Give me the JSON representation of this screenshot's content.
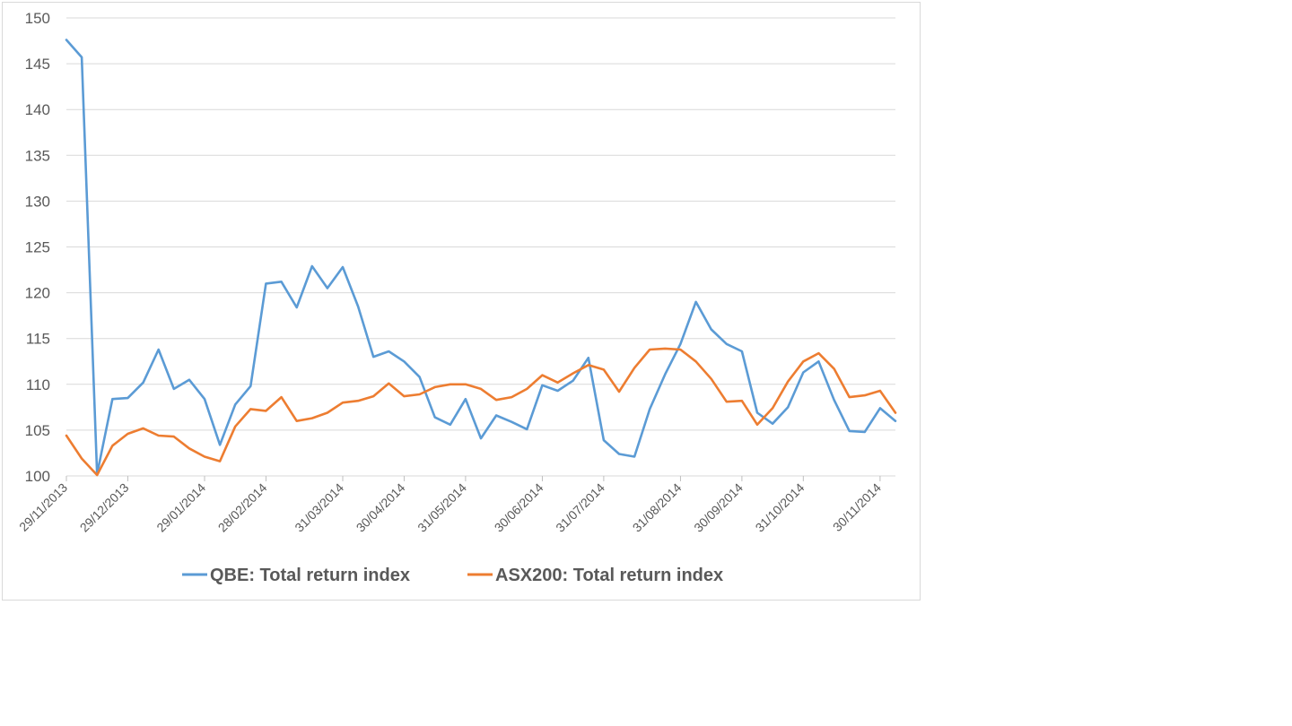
{
  "chart_data": {
    "type": "line",
    "title": "",
    "xlabel": "",
    "ylabel": "",
    "ylim": [
      100,
      150
    ],
    "y_ticks": [
      "100",
      "105",
      "110",
      "115",
      "120",
      "125",
      "130",
      "135",
      "140",
      "145",
      "150"
    ],
    "x_tick_labels": [
      {
        "label": "29/11/2013",
        "point_index": 0
      },
      {
        "label": "29/12/2013",
        "point_index": 4
      },
      {
        "label": "29/01/2014",
        "point_index": 9
      },
      {
        "label": "28/02/2014",
        "point_index": 13
      },
      {
        "label": "31/03/2014",
        "point_index": 18
      },
      {
        "label": "30/04/2014",
        "point_index": 22
      },
      {
        "label": "31/05/2014",
        "point_index": 26
      },
      {
        "label": "30/06/2014",
        "point_index": 31
      },
      {
        "label": "31/07/2014",
        "point_index": 35
      },
      {
        "label": "31/08/2014",
        "point_index": 40
      },
      {
        "label": "30/09/2014",
        "point_index": 44
      },
      {
        "label": "31/10/2014",
        "point_index": 48
      },
      {
        "label": "30/11/2014",
        "point_index": 53
      }
    ],
    "grid": true,
    "legend_position": "bottom",
    "series": [
      {
        "name": "QBE: Total return index",
        "color": "#5b9bd5",
        "values": [
          147.6,
          145.7,
          100.2,
          108.4,
          108.5,
          110.2,
          113.8,
          109.5,
          110.5,
          108.4,
          103.4,
          107.8,
          109.8,
          121.0,
          121.2,
          118.4,
          122.9,
          120.5,
          122.8,
          118.5,
          113.0,
          113.6,
          112.5,
          110.8,
          106.4,
          105.6,
          108.4,
          104.1,
          106.6,
          105.9,
          105.1,
          109.9,
          109.3,
          110.4,
          112.9,
          103.9,
          102.4,
          102.1,
          107.3,
          111.1,
          114.4,
          119.0,
          116.0,
          114.4,
          113.6,
          106.9,
          105.7,
          107.5,
          111.3,
          112.5,
          108.3,
          104.9,
          104.8,
          107.4,
          106.0
        ]
      },
      {
        "name": "ASX200: Total return index",
        "color": "#ed7d31",
        "values": [
          104.4,
          101.9,
          100.1,
          103.3,
          104.6,
          105.2,
          104.4,
          104.3,
          103.0,
          102.1,
          101.6,
          105.4,
          107.3,
          107.1,
          108.6,
          106.0,
          106.3,
          106.9,
          108.0,
          108.2,
          108.7,
          110.1,
          108.7,
          108.9,
          109.7,
          110.0,
          110.0,
          109.5,
          108.3,
          108.6,
          109.5,
          111.0,
          110.2,
          111.2,
          112.1,
          111.6,
          109.2,
          111.8,
          113.8,
          113.9,
          113.8,
          112.5,
          110.6,
          108.1,
          108.2,
          105.6,
          107.4,
          110.3,
          112.5,
          113.4,
          111.7,
          108.6,
          108.8,
          109.3,
          106.9
        ]
      }
    ]
  }
}
